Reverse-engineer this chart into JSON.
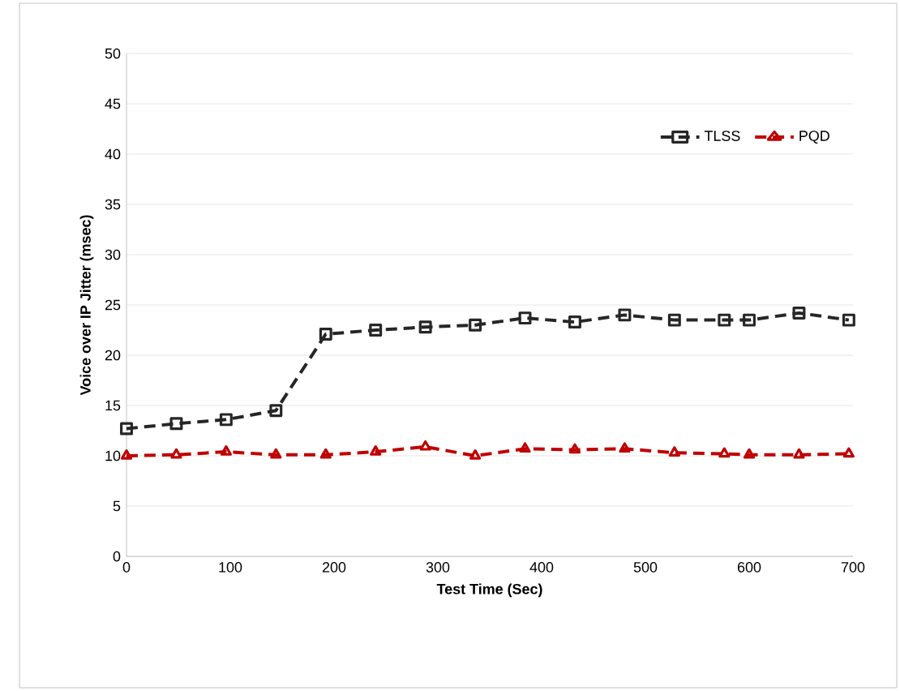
{
  "chart_data": {
    "type": "line",
    "xlabel": "Test Time (Sec)",
    "ylabel": "Voice over IP Jitter (msec)",
    "x": [
      0,
      48,
      96,
      144,
      192,
      240,
      288,
      336,
      384,
      432,
      480,
      528,
      576,
      600,
      648,
      696
    ],
    "series": [
      {
        "name": "TLSS",
        "color": "#262626",
        "marker": "square",
        "values": [
          12.7,
          13.2,
          13.6,
          14.5,
          22.1,
          22.5,
          22.8,
          23.0,
          23.7,
          23.3,
          24.0,
          23.5,
          23.5,
          23.5,
          24.2,
          23.5
        ]
      },
      {
        "name": "PQD",
        "color": "#c00000",
        "marker": "triangle",
        "values": [
          10.0,
          10.1,
          10.4,
          10.1,
          10.1,
          10.4,
          10.9,
          10.0,
          10.7,
          10.6,
          10.7,
          10.3,
          10.2,
          10.1,
          10.1,
          10.2
        ]
      }
    ],
    "xlim": [
      0,
      700
    ],
    "xticks": [
      0,
      100,
      200,
      300,
      400,
      500,
      600,
      700
    ],
    "ylim": [
      0,
      50
    ],
    "yticks": [
      0,
      5,
      10,
      15,
      20,
      25,
      30,
      35,
      40,
      45,
      50
    ],
    "grid": "y",
    "legend": "top right",
    "line_style": "dashed"
  }
}
